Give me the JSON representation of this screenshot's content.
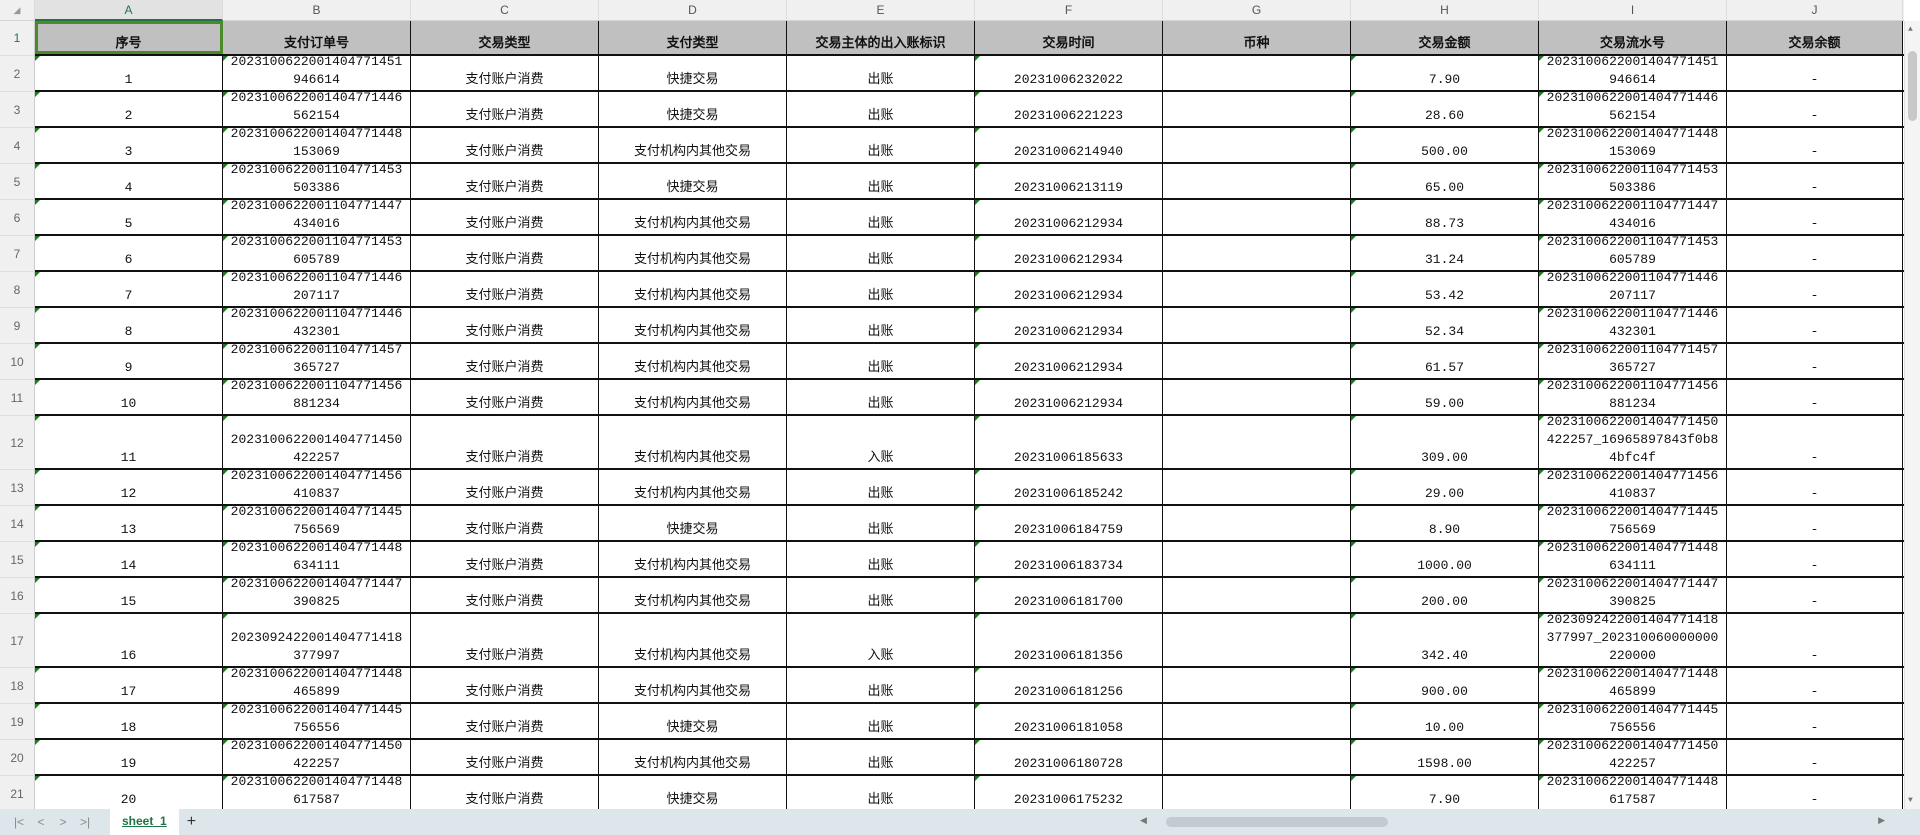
{
  "columns": [
    "A",
    "B",
    "C",
    "D",
    "E",
    "F",
    "G",
    "H",
    "I",
    "J"
  ],
  "header_row": [
    "序号",
    "支付订单号",
    "交易类型",
    "支付类型",
    "交易主体的出入账标识",
    "交易时间",
    "币种",
    "交易金额",
    "交易流水号",
    "交易余额"
  ],
  "cells": [
    [
      "1",
      "2023100622001404771451\n946614",
      "支付账户消费",
      "快捷交易",
      "出账",
      "20231006232022",
      "",
      "7.90",
      "2023100622001404771451\n946614",
      "-"
    ],
    [
      "2",
      "2023100622001404771446\n562154",
      "支付账户消费",
      "快捷交易",
      "出账",
      "20231006221223",
      "",
      "28.60",
      "2023100622001404771446\n562154",
      "-"
    ],
    [
      "3",
      "2023100622001404771448\n153069",
      "支付账户消费",
      "支付机构内其他交易",
      "出账",
      "20231006214940",
      "",
      "500.00",
      "2023100622001404771448\n153069",
      "-"
    ],
    [
      "4",
      "2023100622001104771453\n503386",
      "支付账户消费",
      "快捷交易",
      "出账",
      "20231006213119",
      "",
      "65.00",
      "2023100622001104771453\n503386",
      "-"
    ],
    [
      "5",
      "2023100622001104771447\n434016",
      "支付账户消费",
      "支付机构内其他交易",
      "出账",
      "20231006212934",
      "",
      "88.73",
      "2023100622001104771447\n434016",
      "-"
    ],
    [
      "6",
      "2023100622001104771453\n605789",
      "支付账户消费",
      "支付机构内其他交易",
      "出账",
      "20231006212934",
      "",
      "31.24",
      "2023100622001104771453\n605789",
      "-"
    ],
    [
      "7",
      "2023100622001104771446\n207117",
      "支付账户消费",
      "支付机构内其他交易",
      "出账",
      "20231006212934",
      "",
      "53.42",
      "2023100622001104771446\n207117",
      "-"
    ],
    [
      "8",
      "2023100622001104771446\n432301",
      "支付账户消费",
      "支付机构内其他交易",
      "出账",
      "20231006212934",
      "",
      "52.34",
      "2023100622001104771446\n432301",
      "-"
    ],
    [
      "9",
      "2023100622001104771457\n365727",
      "支付账户消费",
      "支付机构内其他交易",
      "出账",
      "20231006212934",
      "",
      "61.57",
      "2023100622001104771457\n365727",
      "-"
    ],
    [
      "10",
      "2023100622001104771456\n881234",
      "支付账户消费",
      "支付机构内其他交易",
      "出账",
      "20231006212934",
      "",
      "59.00",
      "2023100622001104771456\n881234",
      "-"
    ],
    [
      "11",
      "2023100622001404771450\n422257",
      "支付账户消费",
      "支付机构内其他交易",
      "入账",
      "20231006185633",
      "",
      "309.00",
      "2023100622001404771450\n422257_16965897843f0b8\n4bfc4f",
      "-"
    ],
    [
      "12",
      "2023100622001404771456\n410837",
      "支付账户消费",
      "支付机构内其他交易",
      "出账",
      "20231006185242",
      "",
      "29.00",
      "2023100622001404771456\n410837",
      "-"
    ],
    [
      "13",
      "2023100622001404771445\n756569",
      "支付账户消费",
      "快捷交易",
      "出账",
      "20231006184759",
      "",
      "8.90",
      "2023100622001404771445\n756569",
      "-"
    ],
    [
      "14",
      "2023100622001404771448\n634111",
      "支付账户消费",
      "支付机构内其他交易",
      "出账",
      "20231006183734",
      "",
      "1000.00",
      "2023100622001404771448\n634111",
      "-"
    ],
    [
      "15",
      "2023100622001404771447\n390825",
      "支付账户消费",
      "支付机构内其他交易",
      "出账",
      "20231006181700",
      "",
      "200.00",
      "2023100622001404771447\n390825",
      "-"
    ],
    [
      "16",
      "2023092422001404771418\n377997",
      "支付账户消费",
      "支付机构内其他交易",
      "入账",
      "20231006181356",
      "",
      "342.40",
      "2023092422001404771418\n377997_202310060000000\n220000",
      "-"
    ],
    [
      "17",
      "2023100622001404771448\n465899",
      "支付账户消费",
      "支付机构内其他交易",
      "出账",
      "20231006181256",
      "",
      "900.00",
      "2023100622001404771448\n465899",
      "-"
    ],
    [
      "18",
      "2023100622001404771445\n756556",
      "支付账户消费",
      "快捷交易",
      "出账",
      "20231006181058",
      "",
      "10.00",
      "2023100622001404771445\n756556",
      "-"
    ],
    [
      "19",
      "2023100622001404771450\n422257",
      "支付账户消费",
      "支付机构内其他交易",
      "出账",
      "20231006180728",
      "",
      "1598.00",
      "2023100622001404771450\n422257",
      "-"
    ],
    [
      "20",
      "2023100622001404771448\n617587",
      "支付账户消费",
      "快捷交易",
      "出账",
      "20231006175232",
      "",
      "7.90",
      "2023100622001404771448\n617587",
      "-"
    ]
  ],
  "sheet_tab": "sheet_1",
  "add_sheet": "+",
  "nav_icons": [
    "first-sheet-icon",
    "prev-sheet-icon",
    "next-sheet-icon",
    "last-sheet-icon"
  ],
  "colors": {
    "header_bg": "#c0c0c0",
    "selection": "#4a8a2a",
    "accent": "#217346"
  }
}
